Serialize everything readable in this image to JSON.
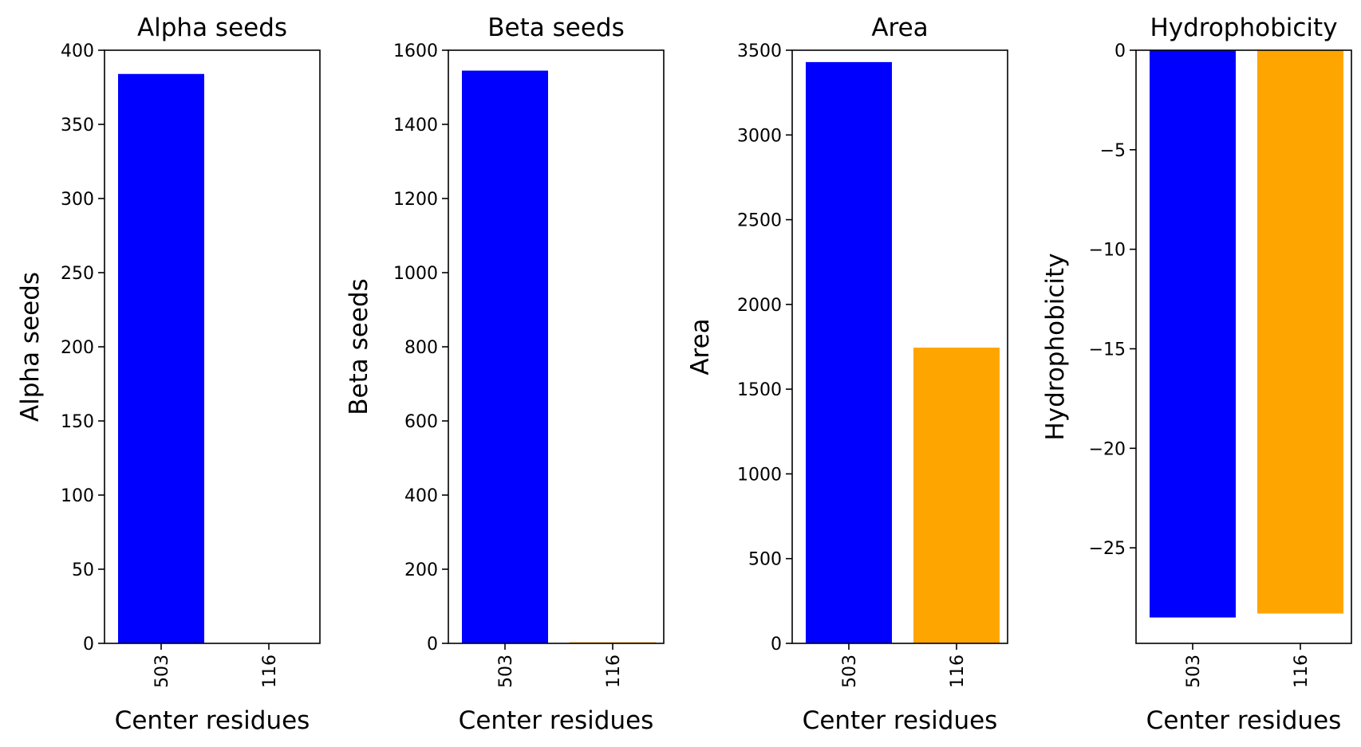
{
  "chart_data": [
    {
      "type": "bar",
      "title": "Alpha seeds",
      "xlabel": "Center residues",
      "ylabel": "Alpha seeds",
      "categories": [
        "503",
        "116"
      ],
      "values": [
        384,
        0
      ],
      "colors": [
        "#0000ff",
        "#ffa500"
      ],
      "ylim": [
        0,
        400
      ],
      "yticks": [
        0,
        50,
        100,
        150,
        200,
        250,
        300,
        350,
        400
      ],
      "ytick_labels": [
        "0",
        "50",
        "100",
        "150",
        "200",
        "250",
        "300",
        "350",
        "400"
      ],
      "grid": false
    },
    {
      "type": "bar",
      "title": "Beta seeds",
      "xlabel": "Center residues",
      "ylabel": "Beta seeds",
      "categories": [
        "503",
        "116"
      ],
      "values": [
        1545,
        3
      ],
      "colors": [
        "#0000ff",
        "#ffa500"
      ],
      "ylim": [
        0,
        1600
      ],
      "yticks": [
        0,
        200,
        400,
        600,
        800,
        1000,
        1200,
        1400,
        1600
      ],
      "ytick_labels": [
        "0",
        "200",
        "400",
        "600",
        "800",
        "1000",
        "1200",
        "1400",
        "1600"
      ],
      "grid": false
    },
    {
      "type": "bar",
      "title": "Area",
      "xlabel": "Center residues",
      "ylabel": "Area",
      "categories": [
        "503",
        "116"
      ],
      "values": [
        3430,
        1745
      ],
      "colors": [
        "#0000ff",
        "#ffa500"
      ],
      "ylim": [
        0,
        3500
      ],
      "yticks": [
        0,
        500,
        1000,
        1500,
        2000,
        2500,
        3000,
        3500
      ],
      "ytick_labels": [
        "0",
        "500",
        "1000",
        "1500",
        "2000",
        "2500",
        "3000",
        "3500"
      ],
      "grid": false
    },
    {
      "type": "bar",
      "title": "Hydrophobicity",
      "xlabel": "Center residues",
      "ylabel": "Hydrophobicity",
      "categories": [
        "503",
        "116"
      ],
      "values": [
        -28.5,
        -28.3
      ],
      "colors": [
        "#0000ff",
        "#ffa500"
      ],
      "ylim": [
        -29.8,
        0
      ],
      "yticks": [
        0,
        -5,
        -10,
        -15,
        -20,
        -25
      ],
      "ytick_labels": [
        "0",
        "−5",
        "−10",
        "−15",
        "−20",
        "−25"
      ],
      "grid": false
    }
  ]
}
